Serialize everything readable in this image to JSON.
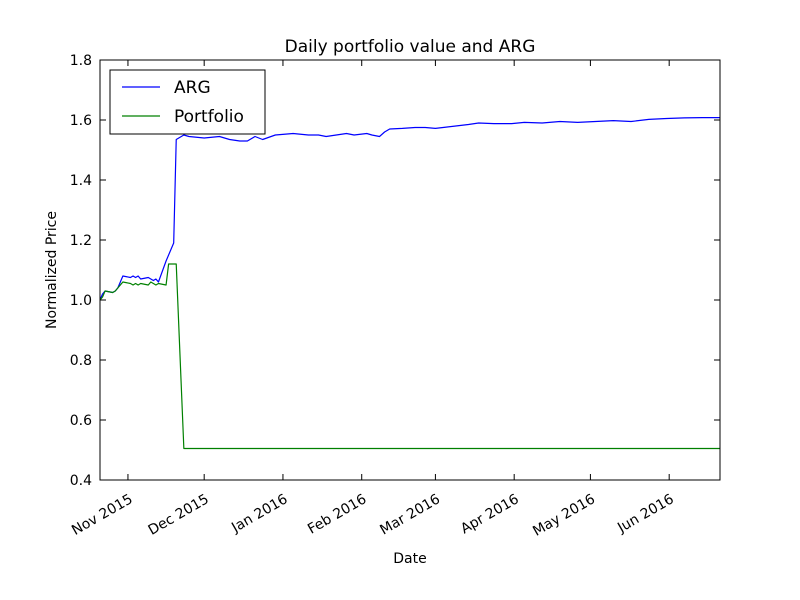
{
  "chart_data": {
    "type": "line",
    "title": "Daily portfolio value and ARG",
    "xlabel": "Date",
    "ylabel": "Normalized Price",
    "xlim": [
      "2015-10-21",
      "2016-06-21"
    ],
    "ylim": [
      0.4,
      1.8
    ],
    "yticks": [
      "0.4",
      "0.6",
      "0.8",
      "1.0",
      "1.2",
      "1.4",
      "1.6",
      "1.8"
    ],
    "xticks": [
      {
        "date": "2015-11-01",
        "label": "Nov 2015"
      },
      {
        "date": "2015-12-01",
        "label": "Dec 2015"
      },
      {
        "date": "2016-01-01",
        "label": "Jan 2016"
      },
      {
        "date": "2016-02-01",
        "label": "Feb 2016"
      },
      {
        "date": "2016-03-01",
        "label": "Mar 2016"
      },
      {
        "date": "2016-04-01",
        "label": "Apr 2016"
      },
      {
        "date": "2016-05-01",
        "label": "May 2016"
      },
      {
        "date": "2016-06-01",
        "label": "Jun 2016"
      }
    ],
    "grid": false,
    "legend_position": "top-left",
    "series": [
      {
        "name": "ARG",
        "color": "#0000ff",
        "points": [
          [
            "2015-10-21",
            1.0
          ],
          [
            "2015-10-22",
            1.02
          ],
          [
            "2015-10-23",
            1.03
          ],
          [
            "2015-10-26",
            1.025
          ],
          [
            "2015-10-27",
            1.03
          ],
          [
            "2015-10-28",
            1.04
          ],
          [
            "2015-10-29",
            1.06
          ],
          [
            "2015-10-30",
            1.08
          ],
          [
            "2015-11-02",
            1.075
          ],
          [
            "2015-11-03",
            1.08
          ],
          [
            "2015-11-04",
            1.075
          ],
          [
            "2015-11-05",
            1.08
          ],
          [
            "2015-11-06",
            1.07
          ],
          [
            "2015-11-09",
            1.075
          ],
          [
            "2015-11-10",
            1.07
          ],
          [
            "2015-11-11",
            1.065
          ],
          [
            "2015-11-12",
            1.07
          ],
          [
            "2015-11-13",
            1.06
          ],
          [
            "2015-11-16",
            1.13
          ],
          [
            "2015-11-17",
            1.15
          ],
          [
            "2015-11-18",
            1.17
          ],
          [
            "2015-11-19",
            1.19
          ],
          [
            "2015-11-20",
            1.535
          ],
          [
            "2015-11-23",
            1.55
          ],
          [
            "2015-11-25",
            1.545
          ],
          [
            "2015-12-01",
            1.54
          ],
          [
            "2015-12-07",
            1.545
          ],
          [
            "2015-12-11",
            1.535
          ],
          [
            "2015-12-15",
            1.53
          ],
          [
            "2015-12-18",
            1.53
          ],
          [
            "2015-12-21",
            1.545
          ],
          [
            "2015-12-24",
            1.535
          ],
          [
            "2015-12-29",
            1.55
          ],
          [
            "2016-01-05",
            1.555
          ],
          [
            "2016-01-11",
            1.55
          ],
          [
            "2016-01-15",
            1.55
          ],
          [
            "2016-01-18",
            1.545
          ],
          [
            "2016-01-22",
            1.55
          ],
          [
            "2016-01-26",
            1.555
          ],
          [
            "2016-01-29",
            1.55
          ],
          [
            "2016-02-03",
            1.555
          ],
          [
            "2016-02-05",
            1.55
          ],
          [
            "2016-02-08",
            1.545
          ],
          [
            "2016-02-10",
            1.56
          ],
          [
            "2016-02-12",
            1.57
          ],
          [
            "2016-02-17",
            1.572
          ],
          [
            "2016-02-22",
            1.575
          ],
          [
            "2016-02-26",
            1.575
          ],
          [
            "2016-03-01",
            1.572
          ],
          [
            "2016-03-04",
            1.575
          ],
          [
            "2016-03-09",
            1.58
          ],
          [
            "2016-03-14",
            1.585
          ],
          [
            "2016-03-18",
            1.59
          ],
          [
            "2016-03-24",
            1.588
          ],
          [
            "2016-03-31",
            1.588
          ],
          [
            "2016-04-05",
            1.592
          ],
          [
            "2016-04-12",
            1.59
          ],
          [
            "2016-04-19",
            1.595
          ],
          [
            "2016-04-26",
            1.592
          ],
          [
            "2016-05-03",
            1.595
          ],
          [
            "2016-05-10",
            1.598
          ],
          [
            "2016-05-17",
            1.595
          ],
          [
            "2016-05-24",
            1.602
          ],
          [
            "2016-05-31",
            1.605
          ],
          [
            "2016-06-07",
            1.607
          ],
          [
            "2016-06-14",
            1.608
          ],
          [
            "2016-06-21",
            1.608
          ]
        ]
      },
      {
        "name": "Portfolio",
        "color": "#008000",
        "points": [
          [
            "2015-10-21",
            1.0
          ],
          [
            "2015-10-22",
            1.01
          ],
          [
            "2015-10-23",
            1.03
          ],
          [
            "2015-10-26",
            1.025
          ],
          [
            "2015-10-27",
            1.03
          ],
          [
            "2015-10-28",
            1.04
          ],
          [
            "2015-10-29",
            1.05
          ],
          [
            "2015-10-30",
            1.06
          ],
          [
            "2015-11-02",
            1.055
          ],
          [
            "2015-11-03",
            1.05
          ],
          [
            "2015-11-04",
            1.055
          ],
          [
            "2015-11-05",
            1.05
          ],
          [
            "2015-11-06",
            1.055
          ],
          [
            "2015-11-09",
            1.05
          ],
          [
            "2015-11-10",
            1.06
          ],
          [
            "2015-11-11",
            1.055
          ],
          [
            "2015-11-12",
            1.05
          ],
          [
            "2015-11-13",
            1.055
          ],
          [
            "2015-11-16",
            1.05
          ],
          [
            "2015-11-17",
            1.12
          ],
          [
            "2015-11-18",
            1.12
          ],
          [
            "2015-11-19",
            1.12
          ],
          [
            "2015-11-20",
            1.12
          ],
          [
            "2015-11-23",
            0.505
          ],
          [
            "2016-06-21",
            0.505
          ]
        ]
      }
    ]
  }
}
